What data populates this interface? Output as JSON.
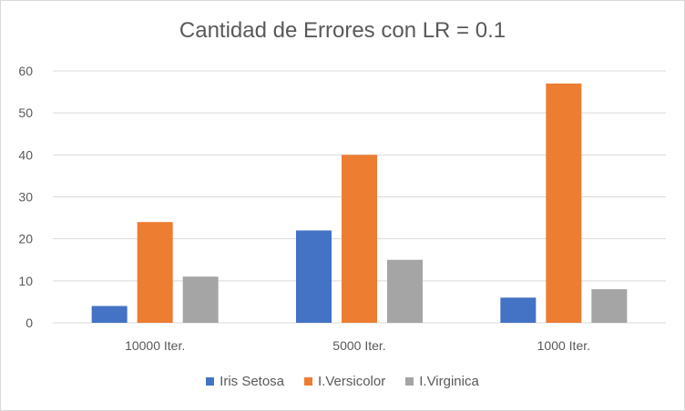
{
  "chart_data": {
    "type": "bar",
    "title": "Cantidad de Errores con LR  = 0.1",
    "categories": [
      "10000 Iter.",
      "5000 Iter.",
      "1000 Iter."
    ],
    "series": [
      {
        "name": "Iris Setosa",
        "color": "#4472c4",
        "values": [
          4,
          22,
          6
        ]
      },
      {
        "name": "I.Versicolor",
        "color": "#ed7d31",
        "values": [
          24,
          40,
          57
        ]
      },
      {
        "name": "I.Virginica",
        "color": "#a5a5a5",
        "values": [
          11,
          15,
          8
        ]
      }
    ],
    "ylim": [
      0,
      60
    ],
    "yticks": [
      0,
      10,
      20,
      30,
      40,
      50,
      60
    ],
    "grid": true,
    "legend_position": "bottom"
  }
}
